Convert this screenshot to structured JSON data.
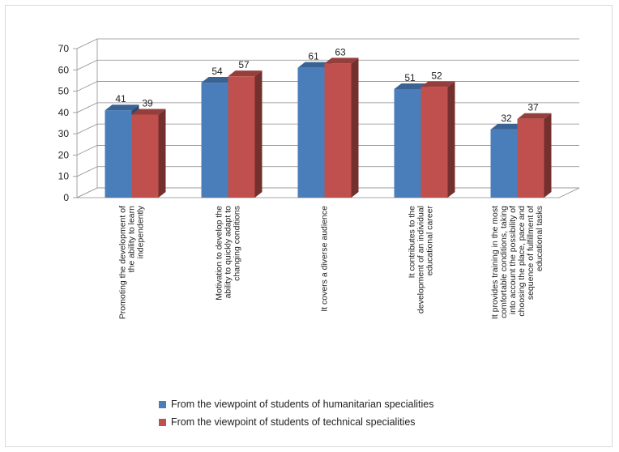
{
  "chart_data": {
    "type": "bar",
    "categories": [
      "Promoting the development of the ability to learn independently",
      "Motivation to develop the ability to quickly adapt to changing conditions",
      "It covers a diverse audience",
      "It contributes to the development of an individual educational career",
      "It provides training in the most comfortable conditions, taking into account the possibility of choosing the place, pace and sequence of fulfillment of educational tasks"
    ],
    "category_lines": [
      [
        "Promoting the development of",
        "the ability to learn",
        "independently"
      ],
      [
        "Motivation to develop the",
        "ability to quickly adapt to",
        "changing conditions"
      ],
      [
        "It covers a diverse audience"
      ],
      [
        "It contributes to the",
        "development of an individual",
        "educational career"
      ],
      [
        "It provides training in the most",
        "comfortable conditions, taking",
        "into account the possibility of",
        "choosing the place, pace and",
        "sequence of fulfillment of",
        "educational tasks"
      ]
    ],
    "series": [
      {
        "name": "From the viewpoint of students of humanitarian specialities",
        "values": [
          41,
          54,
          61,
          51,
          32
        ],
        "color": "#4a7ebb"
      },
      {
        "name": "From the viewpoint of students of technical specialities",
        "values": [
          39,
          57,
          63,
          52,
          37
        ],
        "color": "#c0504d"
      }
    ],
    "ylim": [
      0,
      70
    ],
    "yticks": [
      "0",
      "10",
      "20",
      "30",
      "40",
      "50",
      "60",
      "70"
    ],
    "grid": true,
    "legend_position": "bottom",
    "style": "3d-clustered-column"
  }
}
